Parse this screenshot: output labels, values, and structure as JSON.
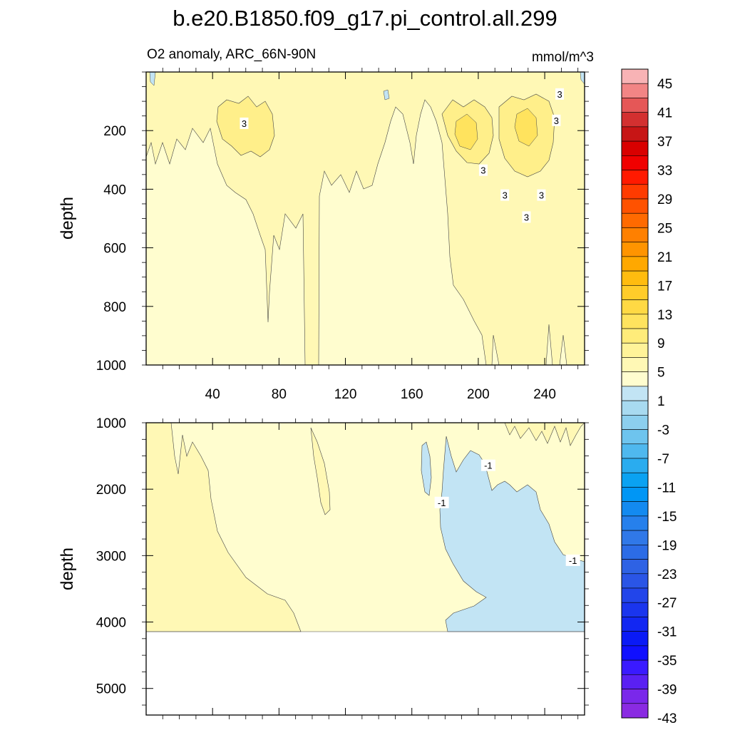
{
  "chart_data": {
    "type": "contour",
    "title": "b.e20.B1850.f09_g17.pi_control.all.299",
    "left_string": "O2 anomaly, ARC_66N-90N",
    "right_string": "mmol/m^3",
    "ylabel": "depth",
    "xlim": [
      0,
      264
    ],
    "x_ticks": [
      40,
      80,
      120,
      160,
      200,
      240
    ],
    "panels": [
      {
        "name": "upper",
        "ylim": [
          0,
          1000
        ],
        "y_reversed": true,
        "y_ticks": [
          200,
          400,
          600,
          800,
          1000
        ],
        "x_tick_labels": true,
        "contour_labels": [
          {
            "x": 59,
            "y": 175,
            "text": "3"
          },
          {
            "x": 249,
            "y": 75,
            "text": "3"
          },
          {
            "x": 247,
            "y": 165,
            "text": "3"
          },
          {
            "x": 203,
            "y": 335,
            "text": "3"
          },
          {
            "x": 216,
            "y": 420,
            "text": "3"
          },
          {
            "x": 238,
            "y": 420,
            "text": "3"
          },
          {
            "x": 229,
            "y": 495,
            "text": "3"
          }
        ]
      },
      {
        "name": "lower",
        "ylim": [
          1000,
          5400
        ],
        "y_reversed": true,
        "y_ticks": [
          1000,
          2000,
          3000,
          4000,
          5000
        ],
        "x_tick_labels": false,
        "data_bottom": 4100,
        "contour_labels": [
          {
            "x": 206,
            "y": 1640,
            "text": "-1"
          },
          {
            "x": 178,
            "y": 2200,
            "text": "-1"
          },
          {
            "x": 257,
            "y": 3070,
            "text": "-1"
          }
        ]
      }
    ],
    "colorbar": {
      "labels": [
        "45",
        "41",
        "37",
        "33",
        "29",
        "25",
        "21",
        "17",
        "13",
        "9",
        "5",
        "1",
        "-3",
        "-7",
        "-11",
        "-15",
        "-19",
        "-23",
        "-27",
        "-31",
        "-35",
        "-39",
        "-43"
      ],
      "colors": [
        "#f8b3b5",
        "#f28585",
        "#e55757",
        "#d33030",
        "#c71515",
        "#d90000",
        "#f00000",
        "#ff1a00",
        "#ff3b00",
        "#ff5200",
        "#ff6a00",
        "#ff8000",
        "#ff9400",
        "#ffa800",
        "#ffbc0f",
        "#ffcc2a",
        "#ffd944",
        "#ffe35e",
        "#ffec7a",
        "#fff399",
        "#fff8b5",
        "#fffdcf",
        "#c2e4f4",
        "#a8daf0",
        "#8ccfee",
        "#6ec4ee",
        "#4fb8ee",
        "#2aacef",
        "#0aa2f2",
        "#0096f5",
        "#138af0",
        "#2680ec",
        "#3078e8",
        "#2c6ce6",
        "#2e62e4",
        "#2a55e6",
        "#2245ea",
        "#1a35ee",
        "#1227f2",
        "#0a1af6",
        "#1010ff",
        "#3a1aff",
        "#5a20f2",
        "#7a28ea",
        "#8a2be2"
      ]
    }
  }
}
